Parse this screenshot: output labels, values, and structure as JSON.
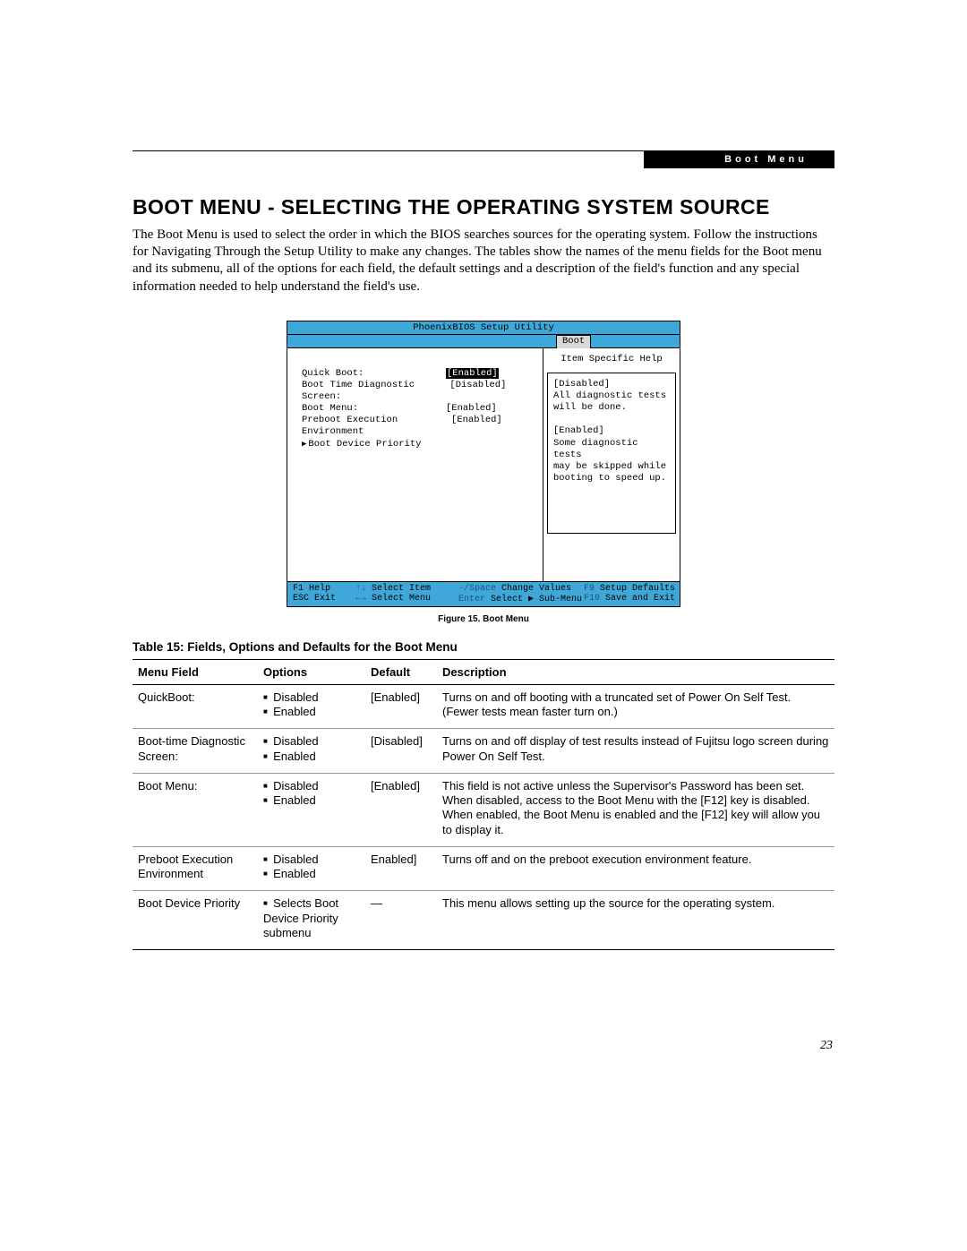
{
  "header": {
    "tag": "Boot Menu"
  },
  "title": "BOOT MENU - SELECTING THE OPERATING SYSTEM SOURCE",
  "intro": "The Boot Menu is used to select the order in which the BIOS searches sources for the operating system. Follow the instructions for Navigating Through the Setup Utility to make any changes. The tables show the names of the menu fields for the Boot menu and its submenu, all of the options for each field, the default settings and a description of the field's function and any special information needed to help understand the field's use.",
  "bios": {
    "utility_title": "PhoenixBIOS Setup Utility",
    "active_tab": "Boot",
    "rows": [
      {
        "label": "Quick Boot:",
        "value": "[Enabled]",
        "selected": true
      },
      {
        "label": "Boot Time Diagnostic Screen:",
        "value": "[Disabled]"
      },
      {
        "label": "Boot Menu:",
        "value": "[Enabled]"
      },
      {
        "label": "Preboot Execution Environment",
        "value": "[Enabled]"
      },
      {
        "label": "Boot Device Priority",
        "value": "",
        "submenu": true
      }
    ],
    "help_title": "Item Specific Help",
    "help_lines": [
      "[Disabled]",
      "All diagnostic tests",
      "will be done.",
      "",
      "[Enabled]",
      "Some diagnostic tests",
      "may be skipped while",
      "booting to speed up."
    ],
    "footer": [
      {
        "key": "F1",
        "label": "Help",
        "key2": "↑↓",
        "label2": "Select Item",
        "key3": "-/Space",
        "label3": "Change Values",
        "key4": "F9",
        "label4": "Setup Defaults"
      },
      {
        "key": "ESC",
        "label": "Exit",
        "key2": "←→",
        "label2": "Select Menu",
        "key3": "Enter",
        "label3": "Select ▶ Sub-Menu",
        "key4": "F10",
        "label4": "Save and Exit"
      }
    ],
    "figure_caption": "Figure 15.  Boot Menu"
  },
  "table": {
    "caption": "Table 15: Fields, Options and Defaults for the Boot Menu",
    "columns": [
      "Menu Field",
      "Options",
      "Default",
      "Description"
    ],
    "rows": [
      {
        "field": "QuickBoot:",
        "options": [
          "Disabled",
          "Enabled"
        ],
        "default": "[Enabled]",
        "desc": "Turns on and off booting with a truncated set of Power On Self Test. (Fewer tests mean faster turn on.)"
      },
      {
        "field": "Boot-time Diagnostic Screen:",
        "options": [
          "Disabled",
          "Enabled"
        ],
        "default": "[Disabled]",
        "desc": "Turns on and off display of test results instead of Fujitsu logo screen during Power On Self Test."
      },
      {
        "field": "Boot Menu:",
        "options": [
          "Disabled",
          "Enabled"
        ],
        "default": "[Enabled]",
        "desc": "This field is not active unless the Supervisor's Password has been set. When disabled, access to the Boot Menu with the [F12] key is disabled. When enabled, the Boot Menu is enabled and the [F12] key will allow you to display it."
      },
      {
        "field": "Preboot Execution Environment",
        "options": [
          "Disabled",
          "Enabled"
        ],
        "default": "Enabled]",
        "desc": "Turns off and on the preboot execution environment feature."
      },
      {
        "field": "Boot Device Priority",
        "options": [
          "Selects Boot Device Priority submenu"
        ],
        "default": "—",
        "desc": "This menu allows setting up the source for the operating system."
      }
    ]
  },
  "page_number": "23",
  "colors": {
    "bios_blue": "#3fa8d8",
    "bios_tab_bg": "#d8d8d8",
    "footer_muted": "#225073"
  }
}
